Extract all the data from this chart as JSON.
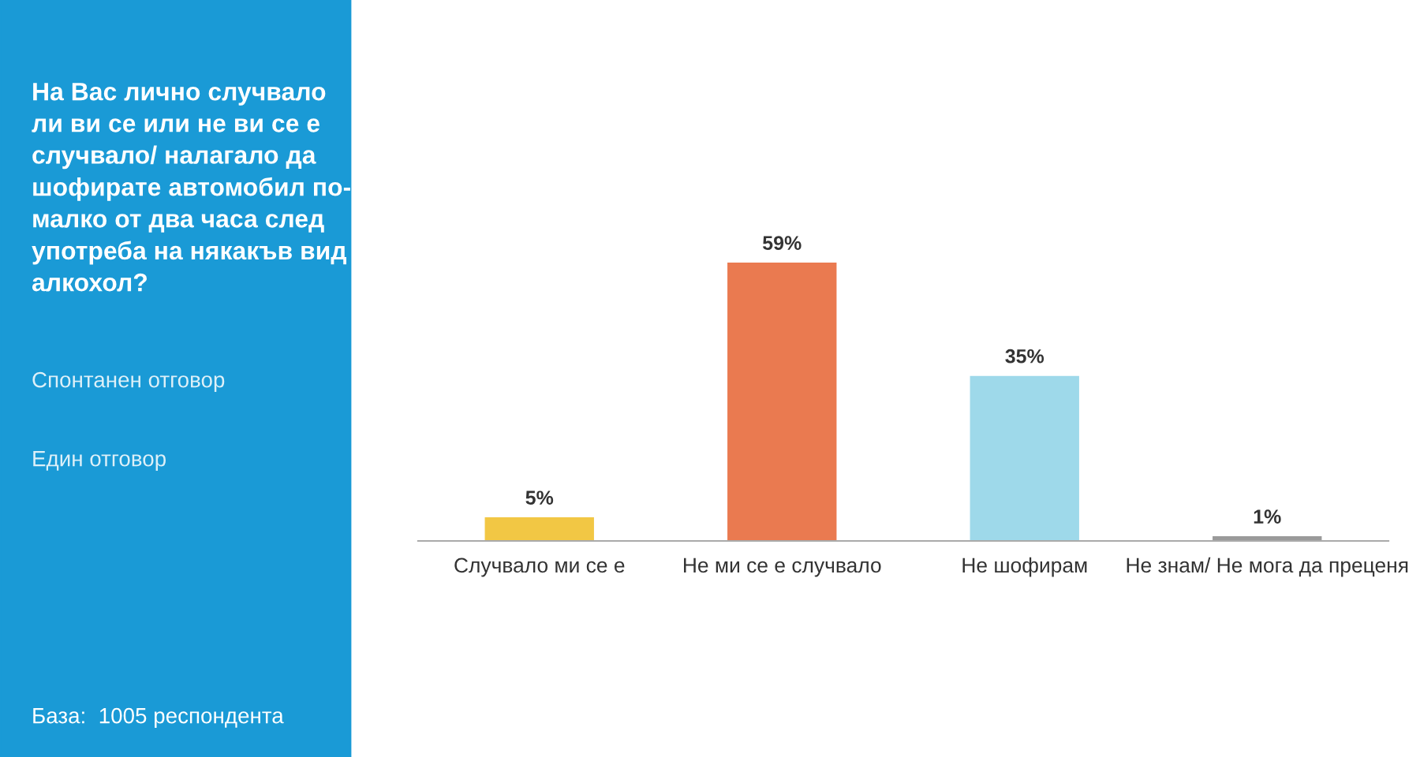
{
  "chart_data": {
    "type": "bar",
    "title": "На Вас лично случвало\nли ви се или не ви се е\nслучвало/ налагало да\nшофирате автомобил по-\nмалко от два часа след\nупотреба на някакъв вид\nалкохол?",
    "annotations": [
      "Спонтанен отговор",
      "Един отговор",
      "База:  1005 респондента"
    ],
    "categories": [
      "Случвало ми се е",
      "Не ми се е случвало",
      "Не шофирам",
      "Не знам/ Не мога да преценя"
    ],
    "values": [
      5,
      59,
      35,
      1
    ],
    "colors": [
      "#f2c744",
      "#ea7a50",
      "#9ed9ea",
      "#9a9a9a"
    ],
    "value_labels": [
      "5%",
      "59%",
      "35%",
      "1%"
    ],
    "grid": false,
    "legend": false
  }
}
